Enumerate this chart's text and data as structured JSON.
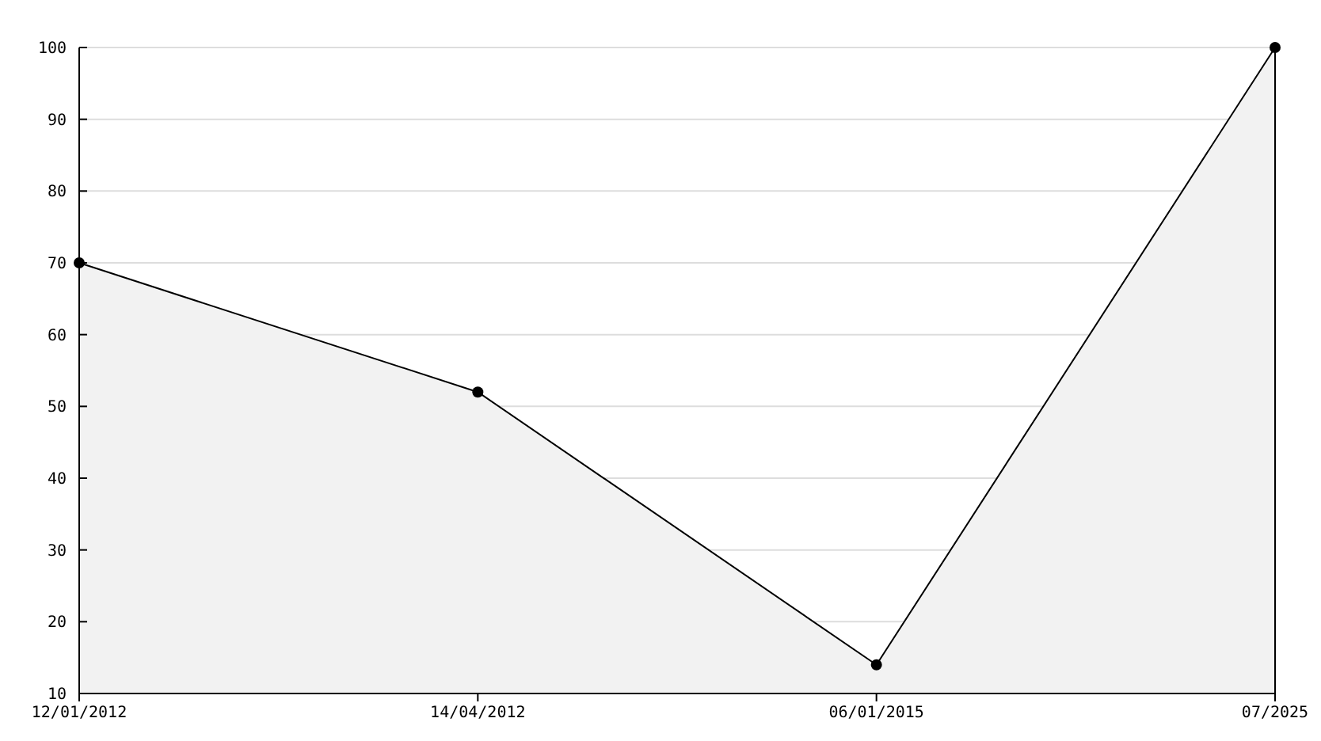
{
  "chart_data": {
    "type": "area",
    "categories": [
      "12/01/2012",
      "14/04/2012",
      "06/01/2015",
      "07/2025"
    ],
    "series": [
      {
        "color": "#000000",
        "values": [
          70,
          52,
          14,
          100
        ]
      }
    ],
    "ylim": [
      10,
      100
    ],
    "yticks": [
      10,
      20,
      30,
      40,
      50,
      60,
      70,
      80,
      90,
      100
    ],
    "grid": "y",
    "marker": "circle",
    "line_style": "solid"
  }
}
